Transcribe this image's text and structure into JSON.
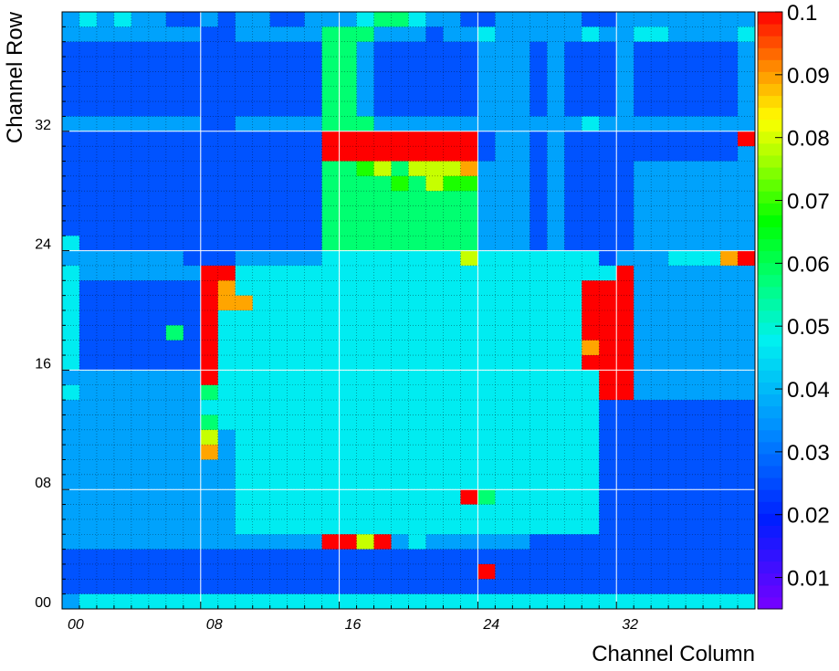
{
  "chart_data": {
    "type": "heatmap",
    "title": "",
    "xlabel": "Channel Column",
    "ylabel": "Channel Row",
    "x_range": [
      0,
      40
    ],
    "y_range": [
      0,
      40
    ],
    "x_ticks": [
      {
        "value": 0,
        "label": "00"
      },
      {
        "value": 8,
        "label": "08"
      },
      {
        "value": 16,
        "label": "16"
      },
      {
        "value": 24,
        "label": "24"
      },
      {
        "value": 32,
        "label": "32"
      }
    ],
    "y_ticks": [
      {
        "value": 0,
        "label": "00"
      },
      {
        "value": 8,
        "label": "08"
      },
      {
        "value": 16,
        "label": "16"
      },
      {
        "value": 24,
        "label": "24"
      },
      {
        "value": 32,
        "label": "32"
      }
    ],
    "colorbar": {
      "range": [
        0.005,
        0.1
      ],
      "ticks": [
        {
          "value": 0.1,
          "label": "0.1"
        },
        {
          "value": 0.09,
          "label": "0.09"
        },
        {
          "value": 0.08,
          "label": "0.08"
        },
        {
          "value": 0.07,
          "label": "0.07"
        },
        {
          "value": 0.06,
          "label": "0.06"
        },
        {
          "value": 0.05,
          "label": "0.05"
        },
        {
          "value": 0.04,
          "label": "0.04"
        },
        {
          "value": 0.03,
          "label": "0.03"
        },
        {
          "value": 0.02,
          "label": "0.02"
        },
        {
          "value": 0.01,
          "label": "0.01"
        }
      ]
    },
    "grid": true,
    "boundaries_at": [
      8,
      16,
      24,
      32
    ],
    "rows_top_to_bottom": [
      "3434332232332233345543322333332233333333",
      "3333333322333335553332334333334334433334",
      "2222222222222225532222223332322232222223",
      "2222222222222225532222223332322232222223",
      "2222222222222225532222223332322232222223",
      "2222222222222225532222223332322232222223",
      "2222222222222225532222223332322232222223",
      "3333333322333335553333333333334333333333",
      "2222222222222229999999992332322222222229",
      "2222222222222229999999992332322222222223",
      "2222222222222225567577783332322223333333",
      "2222222222222225555657663332322223333333",
      "2222222222222225555555553332322223333333",
      "2222222222222225555555553332322223333333",
      "2222222222222225555555553332322223333333",
      "4222222222222225555555553332322223333333",
      "3333333222333334444444474444444233344489",
      "4333333399444444444444444444444493333333",
      "4222222298444444444444444444449993333333",
      "4222222298844444444444444444449993333333",
      "4222222294444444444444444444449993333333",
      "4222225294444444444444444444449993333333",
      "4222222294444444444444444444448993333333",
      "4222222294444444444444444444449993333333",
      "3333333394444444444444444444444993333333",
      "4333333354444444444444444444444993333333",
      "3333333344444444444444444444444222222222",
      "3333333354444444444444444444444222222222",
      "3333333373444444444444444444444222222222",
      "3333333383444444444444444444444222222222",
      "3333333333444444444444444444444222222222",
      "3333333333444444444444444444444222222222",
      "3333333333444444444444495444444222222222",
      "3333333333444444444444444444444222222222",
      "3333333333444444444444444444444222222222",
      "3333333333333339979343333332222222222222",
      "2222222222222222222222222222222222222222",
      "2222222222222222222222229222222222222222",
      "2222222222222222222222222222222222222222",
      "3444444444444444444444444444444444444444"
    ]
  }
}
